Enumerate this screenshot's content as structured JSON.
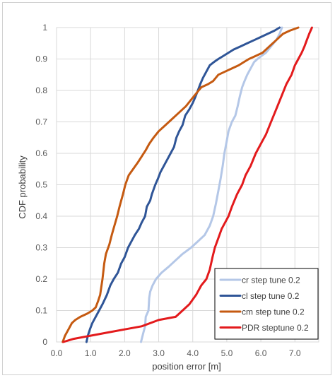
{
  "chart_data": {
    "type": "line",
    "title": "",
    "xlabel": "position error [m]",
    "ylabel": "CDF probability",
    "xlim": [
      0,
      7.7
    ],
    "ylim": [
      0,
      1
    ],
    "x_ticks": [
      "0.0",
      "1.0",
      "2.0",
      "3.0",
      "4.0",
      "5.0",
      "6.0",
      "7.0"
    ],
    "y_ticks": [
      "0",
      "0.1",
      "0.2",
      "0.3",
      "0.4",
      "0.5",
      "0.6",
      "0.7",
      "0.8",
      "0.9",
      "1"
    ],
    "grid": true,
    "legend_position": "bottom-right",
    "series": [
      {
        "name": "cr step tune 0.2",
        "color": "#b4c7e7",
        "points": [
          [
            2.48,
            0.0
          ],
          [
            2.55,
            0.03
          ],
          [
            2.6,
            0.05
          ],
          [
            2.62,
            0.08
          ],
          [
            2.7,
            0.1
          ],
          [
            2.72,
            0.14
          ],
          [
            2.75,
            0.16
          ],
          [
            2.82,
            0.18
          ],
          [
            2.92,
            0.2
          ],
          [
            3.08,
            0.22
          ],
          [
            3.3,
            0.24
          ],
          [
            3.5,
            0.26
          ],
          [
            3.7,
            0.28
          ],
          [
            3.95,
            0.3
          ],
          [
            4.15,
            0.32
          ],
          [
            4.35,
            0.34
          ],
          [
            4.5,
            0.37
          ],
          [
            4.6,
            0.4
          ],
          [
            4.68,
            0.44
          ],
          [
            4.75,
            0.48
          ],
          [
            4.82,
            0.52
          ],
          [
            4.88,
            0.56
          ],
          [
            4.93,
            0.6
          ],
          [
            5.0,
            0.64
          ],
          [
            5.05,
            0.67
          ],
          [
            5.15,
            0.7
          ],
          [
            5.25,
            0.72
          ],
          [
            5.32,
            0.75
          ],
          [
            5.38,
            0.78
          ],
          [
            5.45,
            0.81
          ],
          [
            5.52,
            0.83
          ],
          [
            5.6,
            0.85
          ],
          [
            5.7,
            0.87
          ],
          [
            5.8,
            0.89
          ],
          [
            5.9,
            0.9
          ],
          [
            6.02,
            0.91
          ],
          [
            6.15,
            0.92
          ],
          [
            6.3,
            0.94
          ],
          [
            6.45,
            0.96
          ],
          [
            6.55,
            0.98
          ],
          [
            6.62,
            1.0
          ]
        ]
      },
      {
        "name": "cl step tune 0.2",
        "color": "#2f5597",
        "points": [
          [
            0.88,
            0.0
          ],
          [
            0.92,
            0.02
          ],
          [
            0.98,
            0.04
          ],
          [
            1.05,
            0.06
          ],
          [
            1.15,
            0.08
          ],
          [
            1.25,
            0.1
          ],
          [
            1.35,
            0.12
          ],
          [
            1.48,
            0.15
          ],
          [
            1.58,
            0.18
          ],
          [
            1.68,
            0.2
          ],
          [
            1.8,
            0.22
          ],
          [
            1.9,
            0.25
          ],
          [
            2.0,
            0.27
          ],
          [
            2.1,
            0.3
          ],
          [
            2.2,
            0.32
          ],
          [
            2.3,
            0.34
          ],
          [
            2.42,
            0.36
          ],
          [
            2.5,
            0.38
          ],
          [
            2.6,
            0.4
          ],
          [
            2.65,
            0.43
          ],
          [
            2.75,
            0.45
          ],
          [
            2.8,
            0.47
          ],
          [
            2.9,
            0.5
          ],
          [
            2.98,
            0.52
          ],
          [
            3.05,
            0.54
          ],
          [
            3.15,
            0.56
          ],
          [
            3.25,
            0.58
          ],
          [
            3.35,
            0.6
          ],
          [
            3.45,
            0.62
          ],
          [
            3.52,
            0.65
          ],
          [
            3.6,
            0.67
          ],
          [
            3.7,
            0.69
          ],
          [
            3.78,
            0.72
          ],
          [
            3.9,
            0.74
          ],
          [
            4.0,
            0.76
          ],
          [
            4.08,
            0.78
          ],
          [
            4.15,
            0.8
          ],
          [
            4.22,
            0.82
          ],
          [
            4.3,
            0.84
          ],
          [
            4.4,
            0.86
          ],
          [
            4.5,
            0.88
          ],
          [
            4.62,
            0.89
          ],
          [
            4.75,
            0.9
          ],
          [
            4.9,
            0.91
          ],
          [
            5.05,
            0.92
          ],
          [
            5.2,
            0.93
          ],
          [
            5.4,
            0.94
          ],
          [
            5.6,
            0.95
          ],
          [
            5.8,
            0.96
          ],
          [
            6.0,
            0.97
          ],
          [
            6.2,
            0.98
          ],
          [
            6.4,
            0.99
          ],
          [
            6.55,
            1.0
          ]
        ]
      },
      {
        "name": "cm step tune 0.2",
        "color": "#c55a11",
        "points": [
          [
            0.18,
            0.0
          ],
          [
            0.25,
            0.02
          ],
          [
            0.35,
            0.04
          ],
          [
            0.45,
            0.06
          ],
          [
            0.55,
            0.07
          ],
          [
            0.7,
            0.08
          ],
          [
            0.9,
            0.09
          ],
          [
            1.05,
            0.1
          ],
          [
            1.15,
            0.11
          ],
          [
            1.22,
            0.13
          ],
          [
            1.28,
            0.15
          ],
          [
            1.35,
            0.2
          ],
          [
            1.4,
            0.25
          ],
          [
            1.45,
            0.28
          ],
          [
            1.55,
            0.31
          ],
          [
            1.62,
            0.34
          ],
          [
            1.7,
            0.37
          ],
          [
            1.78,
            0.4
          ],
          [
            1.85,
            0.43
          ],
          [
            1.9,
            0.45
          ],
          [
            1.95,
            0.47
          ],
          [
            2.02,
            0.5
          ],
          [
            2.12,
            0.53
          ],
          [
            2.25,
            0.55
          ],
          [
            2.38,
            0.57
          ],
          [
            2.5,
            0.59
          ],
          [
            2.62,
            0.61
          ],
          [
            2.72,
            0.63
          ],
          [
            2.85,
            0.65
          ],
          [
            3.0,
            0.67
          ],
          [
            3.2,
            0.69
          ],
          [
            3.4,
            0.71
          ],
          [
            3.6,
            0.73
          ],
          [
            3.8,
            0.75
          ],
          [
            3.95,
            0.77
          ],
          [
            4.1,
            0.79
          ],
          [
            4.25,
            0.81
          ],
          [
            4.45,
            0.82
          ],
          [
            4.6,
            0.83
          ],
          [
            4.75,
            0.85
          ],
          [
            4.95,
            0.86
          ],
          [
            5.15,
            0.87
          ],
          [
            5.35,
            0.88
          ],
          [
            5.5,
            0.89
          ],
          [
            5.65,
            0.9
          ],
          [
            5.85,
            0.91
          ],
          [
            6.05,
            0.92
          ],
          [
            6.25,
            0.94
          ],
          [
            6.45,
            0.96
          ],
          [
            6.65,
            0.98
          ],
          [
            6.85,
            0.99
          ],
          [
            7.1,
            1.0
          ]
        ]
      },
      {
        "name": "PDR steptune 0.2",
        "color": "#e31a1c",
        "points": [
          [
            0.2,
            0.0
          ],
          [
            0.5,
            0.01
          ],
          [
            1.0,
            0.02
          ],
          [
            1.5,
            0.03
          ],
          [
            2.0,
            0.04
          ],
          [
            2.5,
            0.05
          ],
          [
            3.0,
            0.07
          ],
          [
            3.5,
            0.08
          ],
          [
            3.7,
            0.1
          ],
          [
            3.9,
            0.12
          ],
          [
            4.1,
            0.15
          ],
          [
            4.25,
            0.18
          ],
          [
            4.4,
            0.2
          ],
          [
            4.5,
            0.23
          ],
          [
            4.58,
            0.27
          ],
          [
            4.65,
            0.3
          ],
          [
            4.75,
            0.33
          ],
          [
            4.85,
            0.36
          ],
          [
            4.95,
            0.38
          ],
          [
            5.05,
            0.4
          ],
          [
            5.15,
            0.43
          ],
          [
            5.3,
            0.47
          ],
          [
            5.45,
            0.5
          ],
          [
            5.55,
            0.53
          ],
          [
            5.7,
            0.56
          ],
          [
            5.85,
            0.6
          ],
          [
            6.0,
            0.63
          ],
          [
            6.15,
            0.66
          ],
          [
            6.3,
            0.7
          ],
          [
            6.45,
            0.74
          ],
          [
            6.6,
            0.78
          ],
          [
            6.75,
            0.82
          ],
          [
            6.9,
            0.85
          ],
          [
            7.0,
            0.88
          ],
          [
            7.1,
            0.9
          ],
          [
            7.2,
            0.92
          ],
          [
            7.28,
            0.94
          ],
          [
            7.35,
            0.96
          ],
          [
            7.42,
            0.98
          ],
          [
            7.5,
            1.0
          ]
        ]
      }
    ]
  }
}
